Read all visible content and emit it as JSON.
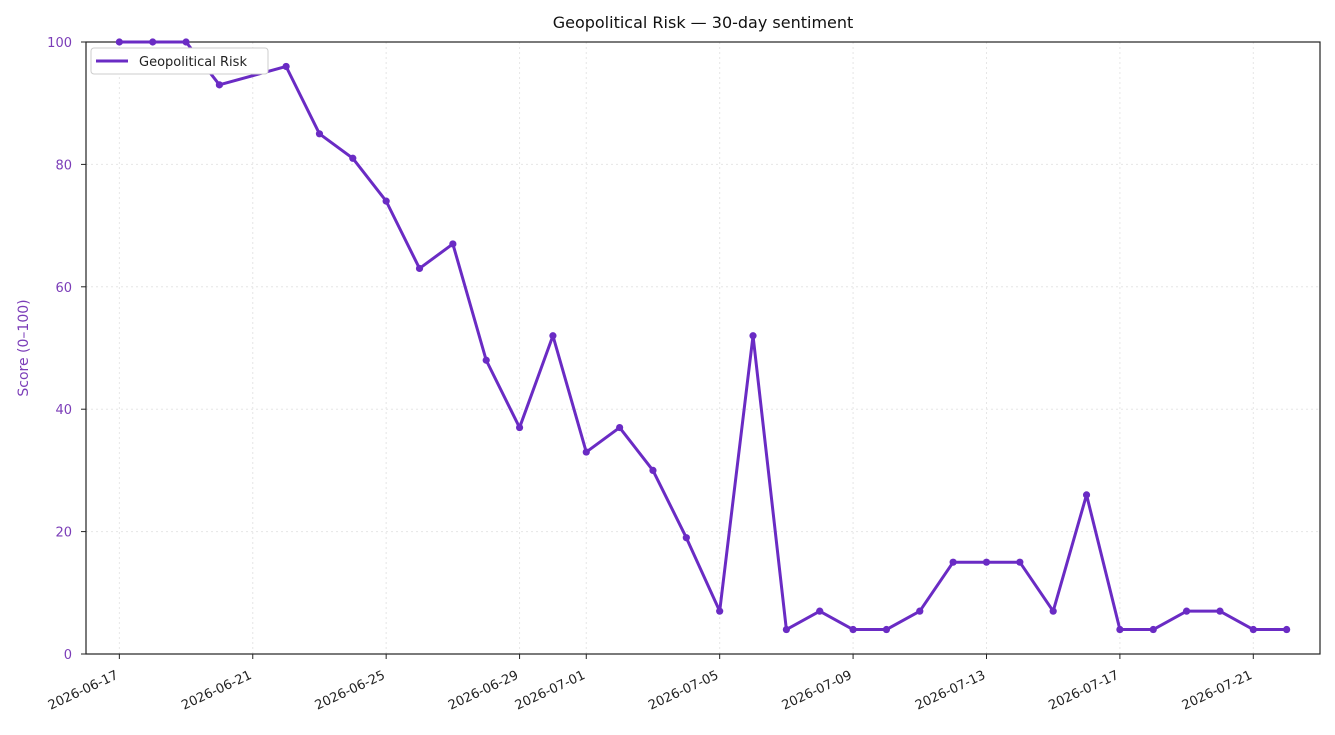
{
  "chart_data": {
    "type": "line",
    "title": "Geopolitical Risk — 30-day sentiment",
    "xlabel": "",
    "ylabel": "Score (0–100)",
    "ylim": [
      0,
      100
    ],
    "yticks": [
      0,
      20,
      40,
      60,
      80,
      100
    ],
    "xticks": [
      "2026-06-17",
      "2026-06-21",
      "2026-06-25",
      "2026-06-29",
      "2026-07-01",
      "2026-07-05",
      "2026-07-09",
      "2026-07-13",
      "2026-07-17",
      "2026-07-21"
    ],
    "xlim": [
      "2026-06-16",
      "2026-07-23"
    ],
    "grid": true,
    "legend_position": "top-left",
    "colors": {
      "series": "#6a2bc4",
      "axis_label": "#7b3db8"
    },
    "series": [
      {
        "name": "Geopolitical Risk",
        "x": [
          "2026-06-17",
          "2026-06-18",
          "2026-06-19",
          "2026-06-20",
          "2026-06-22",
          "2026-06-23",
          "2026-06-24",
          "2026-06-25",
          "2026-06-26",
          "2026-06-27",
          "2026-06-28",
          "2026-06-29",
          "2026-06-30",
          "2026-07-01",
          "2026-07-02",
          "2026-07-03",
          "2026-07-04",
          "2026-07-05",
          "2026-07-06",
          "2026-07-07",
          "2026-07-08",
          "2026-07-09",
          "2026-07-10",
          "2026-07-11",
          "2026-07-12",
          "2026-07-13",
          "2026-07-14",
          "2026-07-15",
          "2026-07-16",
          "2026-07-17",
          "2026-07-18",
          "2026-07-19",
          "2026-07-20",
          "2026-07-21",
          "2026-07-22"
        ],
        "values": [
          100,
          100,
          100,
          93,
          96,
          85,
          81,
          74,
          63,
          67,
          48,
          37,
          52,
          33,
          37,
          30,
          19,
          7,
          52,
          4,
          7,
          4,
          4,
          7,
          15,
          15,
          15,
          7,
          26,
          4,
          4,
          7,
          7,
          4,
          4
        ]
      }
    ]
  }
}
